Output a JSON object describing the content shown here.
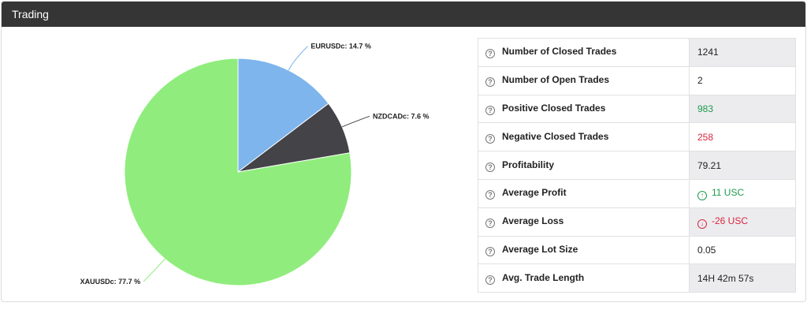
{
  "header": {
    "title": "Trading"
  },
  "chart_data": {
    "type": "pie",
    "slices": [
      {
        "name": "EURUSDc",
        "value": 14.7,
        "label": "EURUSDc: 14.7 %",
        "color": "#7db5ec"
      },
      {
        "name": "NZDCADc",
        "value": 7.6,
        "label": "NZDCADc: 7.6 %",
        "color": "#434348"
      },
      {
        "name": "XAUUSDc",
        "value": 77.7,
        "label": "XAUUSDc: 77.7 %",
        "color": "#90ed7d"
      }
    ]
  },
  "stats": [
    {
      "label": "Number of Closed Trades",
      "value": "1241"
    },
    {
      "label": "Number of Open Trades",
      "value": "2"
    },
    {
      "label": "Positive Closed Trades",
      "value": "983",
      "tone": "pos"
    },
    {
      "label": "Negative Closed Trades",
      "value": "258",
      "tone": "neg"
    },
    {
      "label": "Profitability",
      "value": "79.21"
    },
    {
      "label": "Average Profit",
      "value": "11 USC",
      "tone": "pos",
      "icon": "arrow-up-circle-icon"
    },
    {
      "label": "Average Loss",
      "value": "-26 USC",
      "tone": "neg",
      "icon": "arrow-down-circle-icon"
    },
    {
      "label": "Average Lot Size",
      "value": "0.05"
    },
    {
      "label": "Avg. Trade Length",
      "value": "14H 42m 57s"
    }
  ]
}
